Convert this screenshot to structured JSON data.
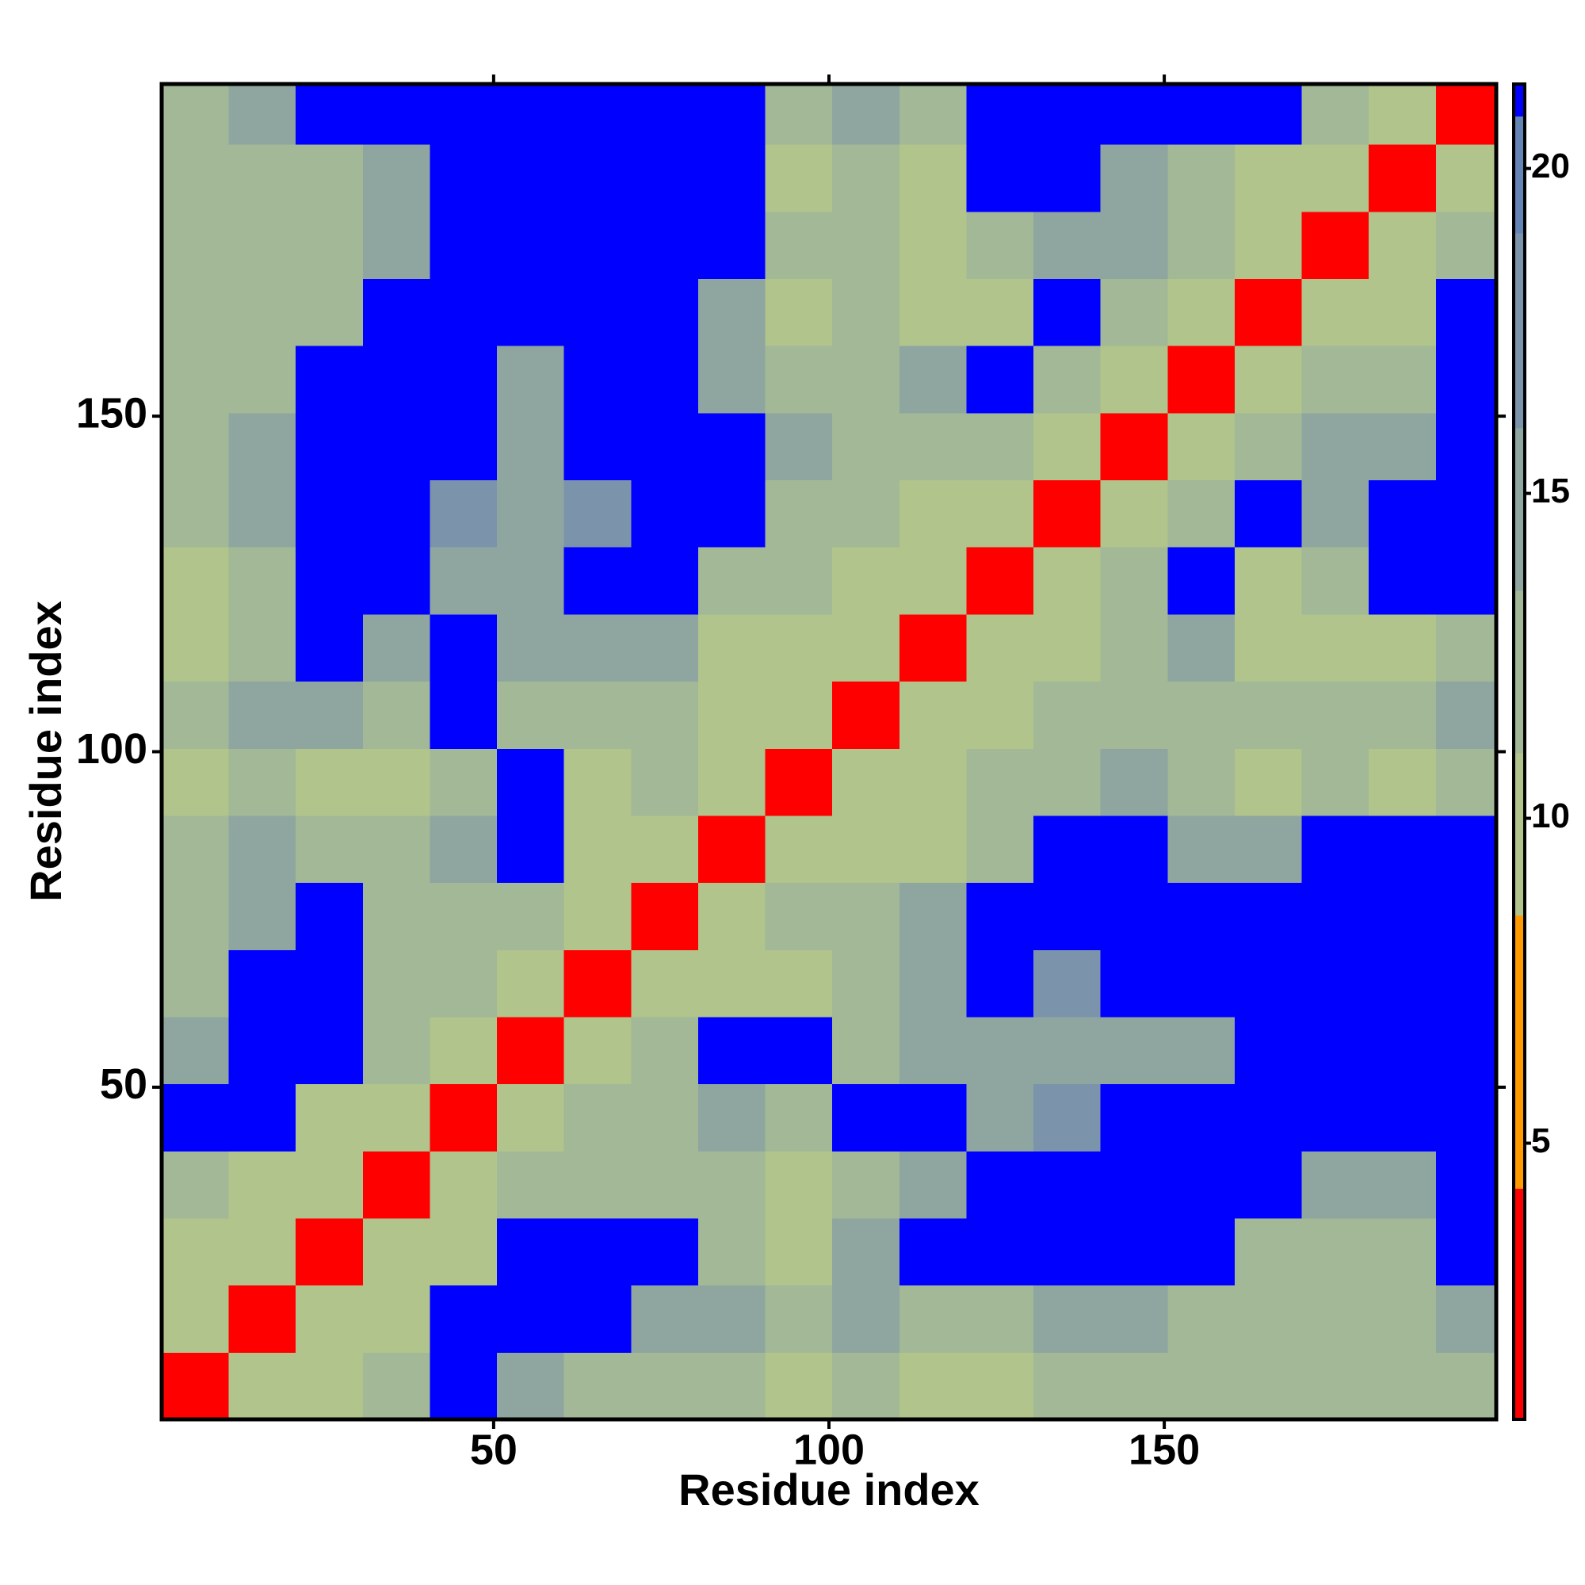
{
  "chart_data": {
    "type": "heatmap",
    "x_label": "Residue index",
    "y_label": "Residue index",
    "xbins": [
      0.5,
      10.5,
      20.5,
      30.5,
      40.5,
      50.5,
      60.5,
      70.5,
      80.5,
      90.5,
      100.5,
      110.5,
      120.5,
      130.5,
      140.5,
      150.5,
      160.5,
      170.5,
      180.5,
      190.5,
      199.5
    ],
    "ybins": [
      0.5,
      10.5,
      20.5,
      30.5,
      40.5,
      50.5,
      60.5,
      70.5,
      80.5,
      90.5,
      100.5,
      110.5,
      120.5,
      130.5,
      140.5,
      150.5,
      160.5,
      170.5,
      180.5,
      190.5,
      199.5
    ],
    "xlim": [
      0.5,
      199.5
    ],
    "ylim": [
      0.5,
      199.5
    ],
    "xticks": [
      50,
      100,
      150
    ],
    "yticks": [
      50,
      100,
      150
    ],
    "z": [
      [
        4,
        9,
        11,
        12,
        21,
        14,
        13,
        13,
        13,
        11,
        12,
        10,
        11,
        12,
        12,
        12,
        12,
        12,
        12,
        13
      ],
      [
        9,
        4,
        9,
        11,
        21,
        21,
        21,
        15,
        15,
        12,
        14,
        12,
        13,
        14,
        15,
        13,
        12,
        12,
        12,
        14
      ],
      [
        11,
        9,
        4,
        9,
        11,
        21,
        21,
        21,
        12,
        11,
        15,
        21,
        21,
        21,
        21,
        21,
        12,
        12,
        12,
        21
      ],
      [
        12,
        11,
        9,
        4,
        9,
        12,
        12,
        13,
        12,
        11,
        13,
        15,
        21,
        21,
        21,
        21,
        21,
        15,
        15,
        21
      ],
      [
        21,
        21,
        11,
        9,
        4,
        9,
        12,
        13,
        14,
        12,
        21,
        21,
        16,
        17,
        21,
        21,
        21,
        21,
        21,
        21
      ],
      [
        14,
        21,
        21,
        12,
        9,
        4,
        9,
        12,
        21,
        21,
        13,
        15,
        16,
        16,
        16,
        16,
        21,
        21,
        21,
        21
      ],
      [
        13,
        21,
        21,
        12,
        12,
        9,
        4,
        9,
        11,
        11,
        12,
        14,
        21,
        17,
        21,
        21,
        21,
        21,
        21,
        21
      ],
      [
        13,
        15,
        21,
        13,
        13,
        12,
        9,
        4,
        9,
        12,
        13,
        14,
        21,
        21,
        21,
        21,
        21,
        21,
        21,
        21
      ],
      [
        13,
        15,
        12,
        12,
        14,
        21,
        11,
        9,
        4,
        9,
        10,
        11,
        13,
        21,
        21,
        14,
        14,
        21,
        21,
        21
      ],
      [
        11,
        12,
        11,
        11,
        12,
        21,
        11,
        12,
        9,
        4,
        9,
        10,
        12,
        13,
        14,
        12,
        11,
        12,
        11,
        12
      ],
      [
        12,
        14,
        15,
        13,
        21,
        13,
        12,
        13,
        10,
        9,
        4,
        9,
        10,
        12,
        13,
        13,
        12,
        13,
        13,
        14
      ],
      [
        10,
        12,
        21,
        15,
        21,
        15,
        14,
        14,
        11,
        10,
        9,
        4,
        9,
        10,
        12,
        14,
        9,
        10,
        11,
        12
      ],
      [
        11,
        13,
        21,
        21,
        16,
        16,
        21,
        21,
        13,
        12,
        10,
        9,
        4,
        9,
        12,
        21,
        11,
        12,
        21,
        21
      ],
      [
        12,
        14,
        21,
        21,
        17,
        16,
        17,
        21,
        21,
        13,
        12,
        10,
        9,
        4,
        9,
        12,
        21,
        15,
        21,
        21
      ],
      [
        12,
        15,
        21,
        21,
        21,
        16,
        21,
        21,
        21,
        14,
        13,
        12,
        12,
        9,
        4,
        9,
        13,
        14,
        15,
        21
      ],
      [
        12,
        13,
        21,
        21,
        21,
        16,
        21,
        21,
        14,
        12,
        13,
        14,
        21,
        12,
        9,
        4,
        9,
        13,
        13,
        21
      ],
      [
        12,
        12,
        12,
        21,
        21,
        21,
        21,
        21,
        14,
        11,
        12,
        9,
        11,
        21,
        13,
        9,
        4,
        9,
        11,
        21
      ],
      [
        12,
        12,
        12,
        15,
        21,
        21,
        21,
        21,
        21,
        12,
        13,
        10,
        12,
        15,
        14,
        13,
        9,
        4,
        9,
        12
      ],
      [
        12,
        12,
        12,
        15,
        21,
        21,
        21,
        21,
        21,
        11,
        13,
        11,
        21,
        21,
        15,
        13,
        11,
        9,
        4,
        9
      ],
      [
        13,
        14,
        21,
        21,
        21,
        21,
        21,
        21,
        21,
        12,
        14,
        12,
        21,
        21,
        21,
        21,
        21,
        12,
        9,
        4
      ]
    ],
    "colorbar": {
      "lim": [
        0.75,
        21.3
      ],
      "ticks": [
        5,
        10,
        15,
        20
      ],
      "bands": [
        {
          "to": 4.3,
          "color": "#ff0000"
        },
        {
          "to": 8.5,
          "color": "#ff9a00"
        },
        {
          "to": 11,
          "color": "#b0c48c"
        },
        {
          "to": 13.5,
          "color": "#a2b896"
        },
        {
          "to": 16,
          "color": "#8fa6a0"
        },
        {
          "to": 19,
          "color": "#7b94ab"
        },
        {
          "to": 20.8,
          "color": "#6384b4"
        },
        {
          "to": 21.3,
          "color": "#0000ff"
        }
      ]
    }
  }
}
